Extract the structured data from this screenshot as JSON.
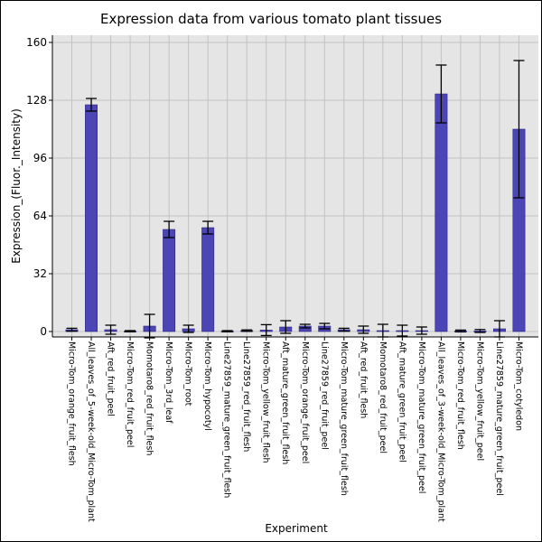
{
  "chart_data": {
    "type": "bar",
    "title": "Expression data from various tomato plant tissues",
    "xlabel": "Experiment",
    "ylabel": "Expression_(Fluor._Intensity)",
    "ylim": [
      -3,
      164
    ],
    "yticks": [
      0,
      32,
      64,
      96,
      128,
      160
    ],
    "grid": true,
    "bar_color": "#4b45b6",
    "plot_background": "#e5e5e5",
    "categories": [
      "Micro-Tom_orange_fruit_flesh",
      "All_leaves_of_5-week-old_Micro-Tom_plant",
      "Aft_red_fruit_peel",
      "Micro-Tom_red_fruit_peel",
      "Momotaro8_red_fruit_flesh",
      "Micro-Tom_3rd_leaf",
      "Micro-Tom_root",
      "Micro-Tom_hypocotyl",
      "Line27859_mature_green_fruit_flesh",
      "Line27859_red_fruit_flesh",
      "Micro-Tom_yellow_fruit_flesh",
      "Aft_mature_green_fruit_flesh",
      "Micro-Tom_orange_fruit_peel",
      "Line27859_red_fruit_peel",
      "Micro-Tom_mature_green_fruit_flesh",
      "Aft_red_fruit_flesh",
      "Momotaro8_red_fruit_peel",
      "Aft_mature_green_fruit_peel",
      "Micro-Tom_mature_green_fruit_peel",
      "All_leaves_of_3-week-old_Micro-Tom_plant",
      "Micro-Tom_red_fruit_flesh",
      "Micro-Tom_yellow_fruit_peel",
      "Line27859_mature_green_fruit_peel",
      "Micro-Tom_cotyledon"
    ],
    "values": [
      1.0,
      125.5,
      1.0,
      0.2,
      3.0,
      56.5,
      1.5,
      57.5,
      0.2,
      0.5,
      0.8,
      2.5,
      3.0,
      3.0,
      1.0,
      1.0,
      0.5,
      0.5,
      0.5,
      131.5,
      0.3,
      0.3,
      1.5,
      112.0
    ],
    "errors": [
      0.8,
      3.5,
      2.5,
      0.3,
      6.5,
      4.5,
      2.0,
      3.5,
      0.3,
      0.4,
      3.0,
      3.5,
      1.0,
      1.5,
      0.8,
      2.0,
      3.5,
      3.0,
      2.0,
      16.0,
      0.5,
      0.8,
      4.5,
      38.0
    ]
  }
}
